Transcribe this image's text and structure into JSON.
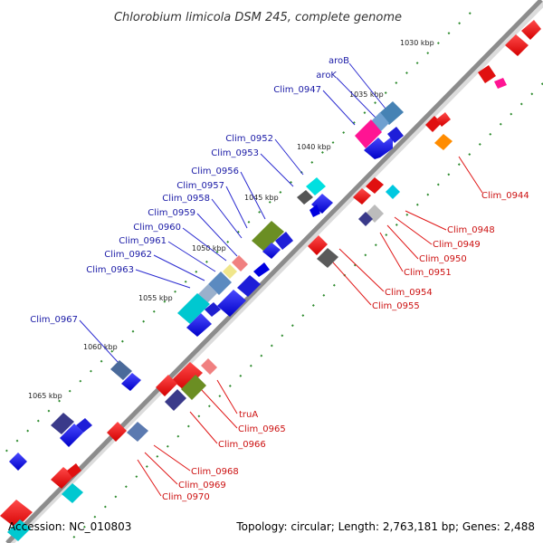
{
  "title": "Chlorobium limicola DSM 245, complete genome",
  "footer": {
    "accession": "Accession: NC_010803",
    "topology": "Topology: circular; Length: 2,763,181 bp; Genes: 2,488"
  },
  "kbp_ticks": [
    "1030 kbp",
    "1035 kbp",
    "1040 kbp",
    "1045 kbp",
    "1050 kbp",
    "1055 kbp",
    "1060 kbp",
    "1065 kbp"
  ],
  "colors": {
    "backbone": "#8c8c8c",
    "forward_label": "#1a1aa6",
    "reverse_label": "#cc1111",
    "gc_dots": "#2e8b2e"
  },
  "forward_genes": [
    "aroB",
    "aroK",
    "Clim_0947",
    "Clim_0952",
    "Clim_0953",
    "Clim_0956",
    "Clim_0957",
    "Clim_0958",
    "Clim_0959",
    "Clim_0960",
    "Clim_0961",
    "Clim_0962",
    "Clim_0963",
    "Clim_0967"
  ],
  "reverse_genes": [
    "Clim_0944",
    "Clim_0948",
    "Clim_0949",
    "Clim_0950",
    "Clim_0951",
    "Clim_0954",
    "Clim_0955",
    "truA",
    "Clim_0965",
    "Clim_0966",
    "Clim_0968",
    "Clim_0969",
    "Clim_0970"
  ]
}
